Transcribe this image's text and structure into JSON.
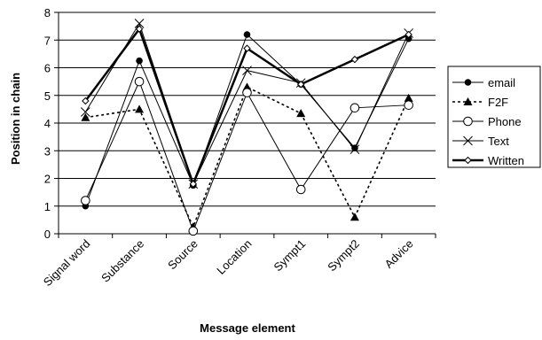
{
  "chart_data": {
    "type": "line",
    "title": "",
    "xlabel": "Message element",
    "ylabel": "Position in chain",
    "categories": [
      "Signal word",
      "Substance",
      "Source",
      "Location",
      "Sympt1",
      "Sympt2",
      "Advice"
    ],
    "ylim": [
      0,
      8
    ],
    "yticks": [
      0,
      1,
      2,
      3,
      4,
      5,
      6,
      7,
      8
    ],
    "grid": true,
    "legend_position": "right",
    "series": [
      {
        "name": "email",
        "values": [
          1.0,
          6.25,
          1.75,
          7.2,
          5.4,
          3.1,
          7.05
        ],
        "marker": "filled-circle",
        "line": "solid-thin",
        "color": "#000000"
      },
      {
        "name": "F2F",
        "values": [
          4.2,
          4.5,
          0.25,
          5.3,
          4.35,
          0.6,
          4.9
        ],
        "marker": "filled-triangle",
        "line": "dotted",
        "color": "#000000"
      },
      {
        "name": "Phone",
        "values": [
          1.2,
          5.5,
          0.1,
          5.1,
          1.6,
          4.55,
          4.65
        ],
        "marker": "open-circle",
        "line": "solid-thin",
        "color": "#000000"
      },
      {
        "name": "Text",
        "values": [
          4.4,
          7.6,
          1.8,
          5.9,
          5.45,
          3.05,
          7.25
        ],
        "marker": "x",
        "line": "solid-thin",
        "color": "#000000"
      },
      {
        "name": "Written",
        "values": [
          4.8,
          7.4,
          1.8,
          6.7,
          5.4,
          6.3,
          7.2
        ],
        "marker": "open-diamond",
        "line": "solid-thick",
        "color": "#000000"
      }
    ]
  }
}
